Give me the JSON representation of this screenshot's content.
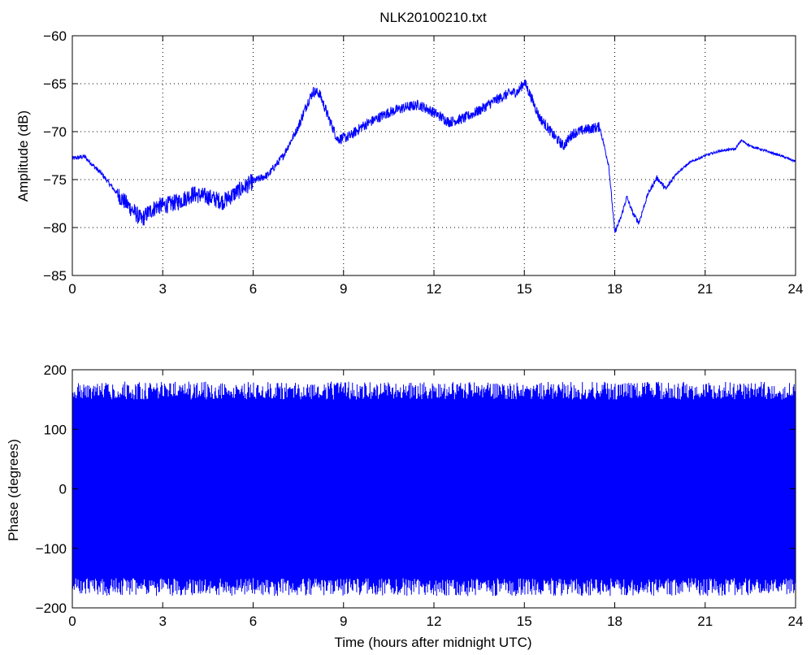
{
  "figure": {
    "title": "NLK20100210.txt",
    "line_color": "#0000ff"
  },
  "chart_data": [
    {
      "type": "line",
      "title": "NLK20100210.txt",
      "xlabel": "",
      "ylabel": "Amplitude (dB)",
      "xlim": [
        0,
        24
      ],
      "ylim": [
        -85,
        -60
      ],
      "xticks": [
        0,
        3,
        6,
        9,
        12,
        15,
        18,
        21,
        24
      ],
      "yticks": [
        -85,
        -80,
        -75,
        -70,
        -65,
        -60
      ],
      "xtick_labels": [
        "0",
        "3",
        "6",
        "9",
        "12",
        "15",
        "18",
        "21",
        "24"
      ],
      "ytick_labels": [
        "−85",
        "−80",
        "−75",
        "−70",
        "−65",
        "−60"
      ],
      "grid": true,
      "series": [
        {
          "color": "#0000ff",
          "x": [
            0,
            0.4,
            1.0,
            1.5,
            2.0,
            2.3,
            2.5,
            2.8,
            3.2,
            3.6,
            4.0,
            4.5,
            5.0,
            5.5,
            6.0,
            6.5,
            7.0,
            7.5,
            7.8,
            8.0,
            8.2,
            8.5,
            8.8,
            9.2,
            9.6,
            10.0,
            10.5,
            11.0,
            11.5,
            12.0,
            12.5,
            13.0,
            13.5,
            14.0,
            14.5,
            14.8,
            15.0,
            15.2,
            15.5,
            16.0,
            16.3,
            16.6,
            17.0,
            17.5,
            17.8,
            18.0,
            18.2,
            18.4,
            18.6,
            18.8,
            19.1,
            19.4,
            19.7,
            20.0,
            20.5,
            21.0,
            21.5,
            22.0,
            22.2,
            22.5,
            23.0,
            23.5,
            24.0
          ],
          "y": [
            -72.8,
            -72.6,
            -74.5,
            -76.5,
            -78.2,
            -79.2,
            -78.5,
            -77.8,
            -77.6,
            -77.2,
            -76.5,
            -76.8,
            -77.3,
            -76.2,
            -75.2,
            -74.5,
            -72.5,
            -69.5,
            -67.0,
            -65.8,
            -66.0,
            -68.5,
            -70.8,
            -70.5,
            -69.5,
            -68.8,
            -68.0,
            -67.5,
            -67.2,
            -68.0,
            -69.0,
            -68.6,
            -67.8,
            -66.8,
            -66.0,
            -65.8,
            -64.8,
            -66.2,
            -68.5,
            -70.5,
            -71.5,
            -70.2,
            -69.8,
            -69.5,
            -73.5,
            -80.5,
            -79.0,
            -76.8,
            -78.5,
            -79.5,
            -76.5,
            -74.8,
            -76.0,
            -74.5,
            -73.2,
            -72.5,
            -72.0,
            -71.8,
            -70.9,
            -71.5,
            -72.0,
            -72.5,
            -73.1
          ]
        }
      ]
    },
    {
      "type": "line",
      "title": "",
      "xlabel": "Time (hours after midnight UTC)",
      "ylabel": "Phase (degrees)",
      "xlim": [
        0,
        24
      ],
      "ylim": [
        -200,
        200
      ],
      "xticks": [
        0,
        3,
        6,
        9,
        12,
        15,
        18,
        21,
        24
      ],
      "yticks": [
        -200,
        -100,
        0,
        100,
        200
      ],
      "xtick_labels": [
        "0",
        "3",
        "6",
        "9",
        "12",
        "15",
        "18",
        "21",
        "24"
      ],
      "ytick_labels": [
        "−200",
        "−100",
        "0",
        "100",
        "200"
      ],
      "grid": false,
      "series": [
        {
          "color": "#0000ff",
          "description_range": [
            -180,
            180
          ],
          "x": [
            0,
            24
          ],
          "y": [
            -175,
            175
          ]
        }
      ]
    }
  ]
}
